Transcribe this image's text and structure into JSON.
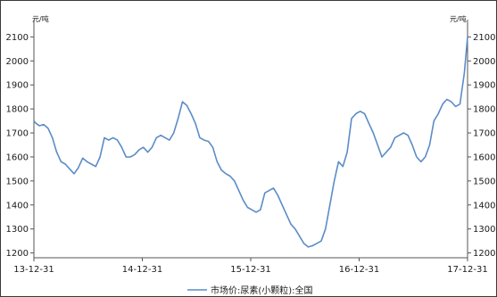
{
  "chart_data": {
    "type": "line",
    "title": "",
    "ylabel_left": "元/吨",
    "ylabel_right": "元/吨",
    "ylim": [
      1180,
      2120
    ],
    "yticks": [
      1200,
      1300,
      1400,
      1500,
      1600,
      1700,
      1800,
      1900,
      2000,
      2100
    ],
    "xticks": [
      "13-12-31",
      "14-12-31",
      "15-12-31",
      "16-12-31",
      "17-12-31"
    ],
    "xlim": [
      0,
      4
    ],
    "grid": false,
    "legend": "bottom-center",
    "colors": {
      "line": "#5b8cc7",
      "axis": "#555555"
    },
    "series": [
      {
        "name": "市场价:尿素(小颗粒):全国",
        "x": [
          0,
          0.02,
          0.05,
          0.09,
          0.13,
          0.17,
          0.21,
          0.25,
          0.29,
          0.33,
          0.37,
          0.41,
          0.45,
          0.49,
          0.53,
          0.57,
          0.61,
          0.65,
          0.69,
          0.73,
          0.77,
          0.81,
          0.85,
          0.89,
          0.93,
          0.97,
          1.01,
          1.05,
          1.09,
          1.13,
          1.17,
          1.21,
          1.25,
          1.29,
          1.33,
          1.37,
          1.41,
          1.45,
          1.49,
          1.53,
          1.57,
          1.61,
          1.65,
          1.69,
          1.73,
          1.77,
          1.81,
          1.85,
          1.89,
          1.93,
          1.97,
          2.01,
          2.05,
          2.09,
          2.13,
          2.17,
          2.21,
          2.25,
          2.29,
          2.33,
          2.37,
          2.41,
          2.45,
          2.49,
          2.53,
          2.57,
          2.61,
          2.65,
          2.69,
          2.73,
          2.77,
          2.81,
          2.85,
          2.89,
          2.93,
          2.97,
          3.01,
          3.05,
          3.09,
          3.13,
          3.17,
          3.21,
          3.25,
          3.29,
          3.33,
          3.37,
          3.41,
          3.45,
          3.49,
          3.53,
          3.57,
          3.61,
          3.65,
          3.69,
          3.73,
          3.77,
          3.81,
          3.85,
          3.89,
          3.93,
          3.97,
          4.0
        ],
        "values": [
          1750,
          1740,
          1730,
          1735,
          1720,
          1680,
          1620,
          1580,
          1570,
          1550,
          1530,
          1555,
          1595,
          1580,
          1570,
          1560,
          1600,
          1680,
          1670,
          1680,
          1670,
          1640,
          1600,
          1600,
          1610,
          1630,
          1640,
          1620,
          1640,
          1680,
          1690,
          1680,
          1670,
          1700,
          1760,
          1830,
          1815,
          1780,
          1740,
          1680,
          1670,
          1665,
          1640,
          1580,
          1545,
          1530,
          1520,
          1500,
          1460,
          1420,
          1390,
          1380,
          1370,
          1380,
          1450,
          1460,
          1470,
          1440,
          1400,
          1360,
          1320,
          1300,
          1270,
          1240,
          1225,
          1230,
          1240,
          1250,
          1300,
          1400,
          1500,
          1580,
          1560,
          1620,
          1760,
          1780,
          1790,
          1780,
          1740,
          1700,
          1650,
          1600,
          1620,
          1640,
          1680,
          1690,
          1700,
          1690,
          1650,
          1600,
          1580,
          1600,
          1650,
          1750,
          1780,
          1820,
          1840,
          1830,
          1810,
          1820,
          1950,
          2100
        ]
      }
    ]
  }
}
